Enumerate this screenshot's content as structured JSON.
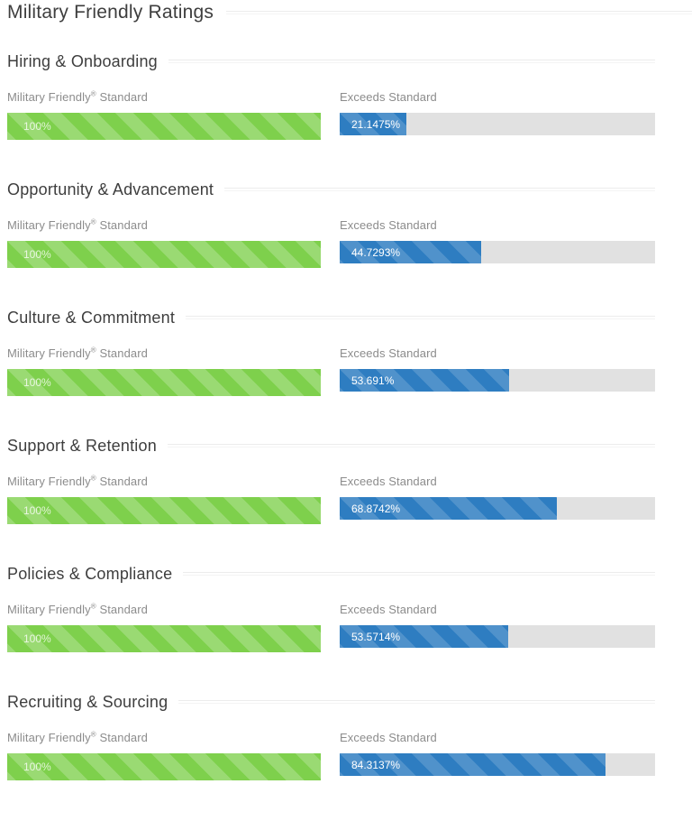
{
  "page": {
    "title": "Military Friendly Ratings"
  },
  "labels": {
    "standard_name": "Military Friendly",
    "registered_mark": "®",
    "standard_suffix": "Standard",
    "exceeds": "Exceeds Standard"
  },
  "colors": {
    "standard_bar_green": "#7ed04c",
    "exceeds_bar_blue": "#2e7dc1",
    "track_gray": "#e1e1e1",
    "heading_text": "#3e3e3e",
    "label_text": "#8c8c8c"
  },
  "sections": [
    {
      "heading": "Hiring & Onboarding",
      "standard": {
        "value_label": "100%",
        "percent": 100
      },
      "exceeds": {
        "value_label": "21.1475%",
        "percent": 21.1475
      }
    },
    {
      "heading": "Opportunity & Advancement",
      "standard": {
        "value_label": "100%",
        "percent": 100
      },
      "exceeds": {
        "value_label": "44.7293%",
        "percent": 44.7293
      }
    },
    {
      "heading": "Culture & Commitment",
      "standard": {
        "value_label": "100%",
        "percent": 100
      },
      "exceeds": {
        "value_label": "53.691%",
        "percent": 53.691
      }
    },
    {
      "heading": "Support & Retention",
      "standard": {
        "value_label": "100%",
        "percent": 100
      },
      "exceeds": {
        "value_label": "68.8742%",
        "percent": 68.8742
      }
    },
    {
      "heading": "Policies & Compliance",
      "standard": {
        "value_label": "100%",
        "percent": 100
      },
      "exceeds": {
        "value_label": "53.5714%",
        "percent": 53.5714
      }
    },
    {
      "heading": "Recruiting & Sourcing",
      "standard": {
        "value_label": "100%",
        "percent": 100
      },
      "exceeds": {
        "value_label": "84.3137%",
        "percent": 84.3137
      }
    }
  ],
  "chart_data": {
    "type": "bar",
    "orientation": "horizontal",
    "title": "Military Friendly Ratings",
    "categories": [
      "Hiring & Onboarding",
      "Opportunity & Advancement",
      "Culture & Commitment",
      "Support & Retention",
      "Policies & Compliance",
      "Recruiting & Sourcing"
    ],
    "series": [
      {
        "name": "Military Friendly® Standard",
        "values": [
          100,
          100,
          100,
          100,
          100,
          100
        ],
        "color": "#7ed04c"
      },
      {
        "name": "Exceeds Standard",
        "values": [
          21.1475,
          44.7293,
          53.691,
          68.8742,
          53.5714,
          84.3137
        ],
        "color": "#2e7dc1"
      }
    ],
    "value_suffix": "%",
    "xlim": [
      0,
      100
    ],
    "grid": false,
    "legend_position": "none"
  }
}
